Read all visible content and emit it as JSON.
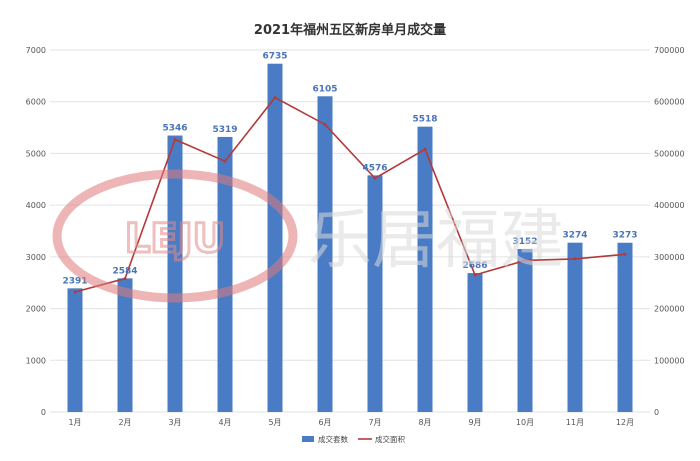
{
  "chart_data": {
    "type": "bar",
    "title": "2021年福州五区新房单月成交量",
    "categories": [
      "1月",
      "2月",
      "3月",
      "4月",
      "5月",
      "6月",
      "7月",
      "8月",
      "9月",
      "10月",
      "11月",
      "12月"
    ],
    "series": [
      {
        "name": "成交套数",
        "type": "bar",
        "axis": "left",
        "color": "#4a7cc6",
        "values": [
          2391,
          2584,
          5346,
          5319,
          6735,
          6105,
          4576,
          5518,
          2686,
          3152,
          3274,
          3273
        ]
      },
      {
        "name": "成交面积",
        "type": "line",
        "axis": "right",
        "color": "#b33a3a",
        "values": [
          232000,
          258000,
          527000,
          485000,
          608000,
          556000,
          452000,
          508000,
          265000,
          293000,
          296000,
          305000
        ]
      }
    ],
    "y_left": {
      "min": 0,
      "max": 7000,
      "ticks": [
        0,
        1000,
        2000,
        3000,
        4000,
        5000,
        6000,
        7000
      ]
    },
    "y_right": {
      "min": 0,
      "max": 700000,
      "ticks": [
        0,
        100000,
        200000,
        300000,
        400000,
        500000,
        600000,
        700000
      ]
    },
    "grid": true,
    "legend_position": "bottom"
  },
  "watermark": {
    "logo_text": "LEJU",
    "brand_text": "乐居福建"
  }
}
